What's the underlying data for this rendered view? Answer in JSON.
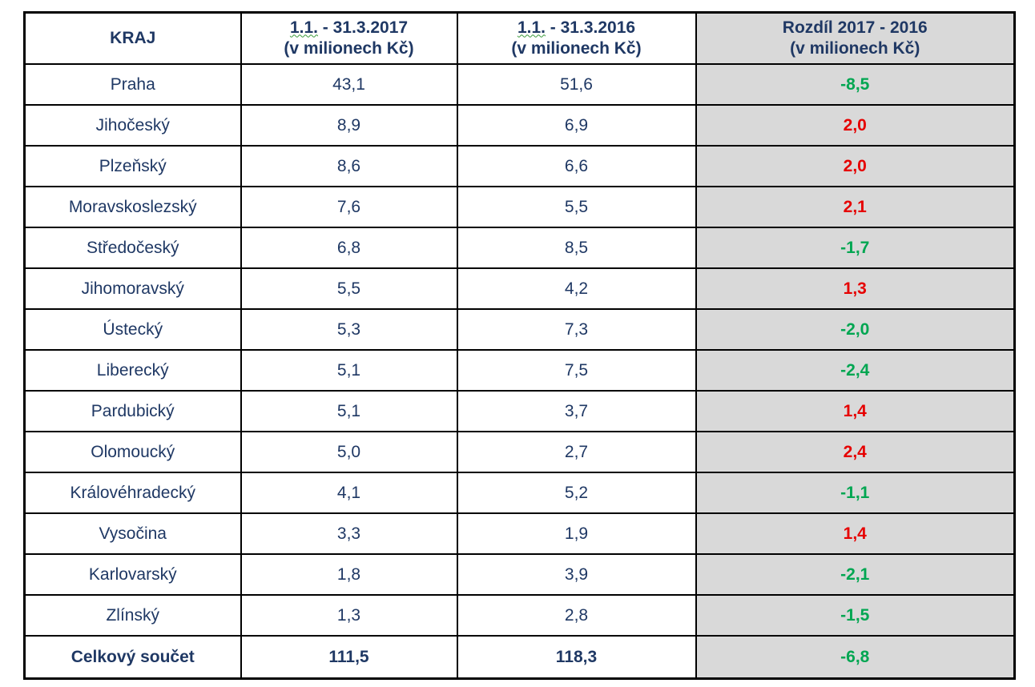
{
  "table": {
    "headers": {
      "region": "KRAJ",
      "col2017_line1_prefix": "1.1.",
      "col2017_line1_rest": " - 31.3.2017",
      "col2017_line2": "(v milionech Kč)",
      "col2016_line1_prefix": "1.1.",
      "col2016_line1_rest": " - 31.3.2016",
      "col2016_line2": "(v milionech Kč)",
      "diff_line1": "Rozdíl 2017 - 2016",
      "diff_line2": "(v milionech Kč)"
    },
    "rows": [
      {
        "region": "Praha",
        "v2017": "43,1",
        "v2016": "51,6",
        "diff": "-8,5",
        "sign": "neg"
      },
      {
        "region": "Jihočeský",
        "v2017": "8,9",
        "v2016": "6,9",
        "diff": "2,0",
        "sign": "pos"
      },
      {
        "region": "Plzeňský",
        "v2017": "8,6",
        "v2016": "6,6",
        "diff": "2,0",
        "sign": "pos"
      },
      {
        "region": "Moravskoslezský",
        "v2017": "7,6",
        "v2016": "5,5",
        "diff": "2,1",
        "sign": "pos"
      },
      {
        "region": "Středočeský",
        "v2017": "6,8",
        "v2016": "8,5",
        "diff": "-1,7",
        "sign": "neg"
      },
      {
        "region": "Jihomoravský",
        "v2017": "5,5",
        "v2016": "4,2",
        "diff": "1,3",
        "sign": "pos"
      },
      {
        "region": "Ústecký",
        "v2017": "5,3",
        "v2016": "7,3",
        "diff": "-2,0",
        "sign": "neg"
      },
      {
        "region": "Liberecký",
        "v2017": "5,1",
        "v2016": "7,5",
        "diff": "-2,4",
        "sign": "neg"
      },
      {
        "region": "Pardubický",
        "v2017": "5,1",
        "v2016": "3,7",
        "diff": "1,4",
        "sign": "pos"
      },
      {
        "region": "Olomoucký",
        "v2017": "5,0",
        "v2016": "2,7",
        "diff": "2,4",
        "sign": "pos"
      },
      {
        "region": "Královéhradecký",
        "v2017": "4,1",
        "v2016": "5,2",
        "diff": "-1,1",
        "sign": "neg"
      },
      {
        "region": "Vysočina",
        "v2017": "3,3",
        "v2016": "1,9",
        "diff": "1,4",
        "sign": "pos"
      },
      {
        "region": "Karlovarský",
        "v2017": "1,8",
        "v2016": "3,9",
        "diff": "-2,1",
        "sign": "neg"
      },
      {
        "region": "Zlínský",
        "v2017": "1,3",
        "v2016": "2,8",
        "diff": "-1,5",
        "sign": "neg"
      }
    ],
    "total": {
      "region": "Celkový součet",
      "v2017": "111,5",
      "v2016": "118,3",
      "diff": "-6,8",
      "sign": "neg"
    }
  },
  "colors": {
    "text": "#1f3864",
    "increase": "#e60000",
    "decrease": "#00a651",
    "diff_column_bg": "#d9d9d9"
  }
}
